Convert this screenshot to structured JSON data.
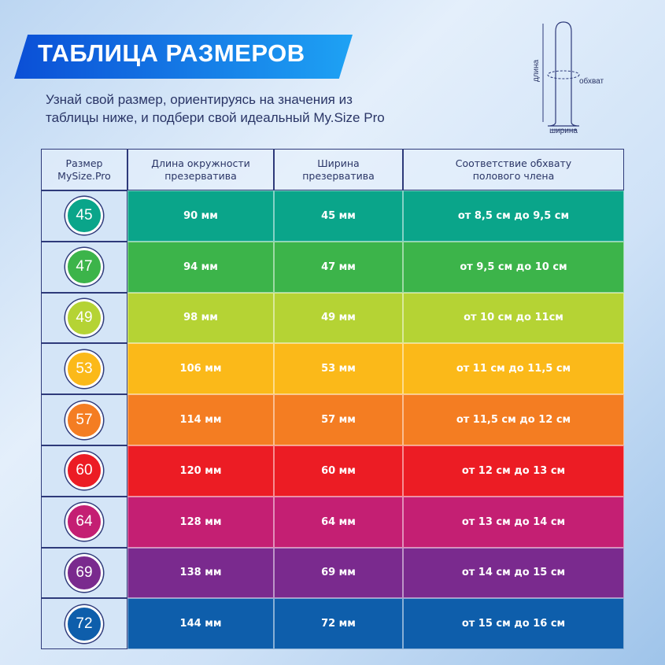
{
  "header": {
    "title": "ТАБЛИЦА РАЗМЕРОВ",
    "subtitle": "Узнай свой размер, ориентируясь на значения из\nтаблицы ниже, и подбери свой идеальный My.Size Pro"
  },
  "diagram": {
    "length": "длина",
    "girth": "обхват",
    "width": "ширина"
  },
  "table": {
    "columns": [
      "Размер\nMySize.Pro",
      "Длина окружности\nпрезерватива",
      "Ширина\nпрезерватива",
      "Соответствие обхвату\nполового члена"
    ],
    "rows": [
      {
        "color": "#0aa58a",
        "cells": [
          "45",
          "90 мм",
          "45 мм",
          "от 8,5 см до 9,5 см"
        ]
      },
      {
        "color": "#3cb44a",
        "cells": [
          "47",
          "94 мм",
          "47 мм",
          "от 9,5 см до 10 см"
        ]
      },
      {
        "color": "#b5d334",
        "cells": [
          "49",
          "98 мм",
          "49 мм",
          "от 10 см до 11см"
        ]
      },
      {
        "color": "#fbb919",
        "cells": [
          "53",
          "106 мм",
          "53 мм",
          "от 11 см до 11,5 см"
        ]
      },
      {
        "color": "#f47d22",
        "cells": [
          "57",
          "114 мм",
          "57 мм",
          "от 11,5 см до 12 см"
        ]
      },
      {
        "color": "#ec1c24",
        "cells": [
          "60",
          "120 мм",
          "60 мм",
          "от 12 см до 13 см"
        ]
      },
      {
        "color": "#c41f73",
        "cells": [
          "64",
          "128 мм",
          "64 мм",
          "от 13 см до 14 см"
        ]
      },
      {
        "color": "#7a2a8e",
        "cells": [
          "69",
          "138 мм",
          "69 мм",
          "от 14 см до 15 см"
        ]
      },
      {
        "color": "#0e5eab",
        "cells": [
          "72",
          "144 мм",
          "72 мм",
          "от 15 см до 16 см"
        ]
      }
    ]
  }
}
